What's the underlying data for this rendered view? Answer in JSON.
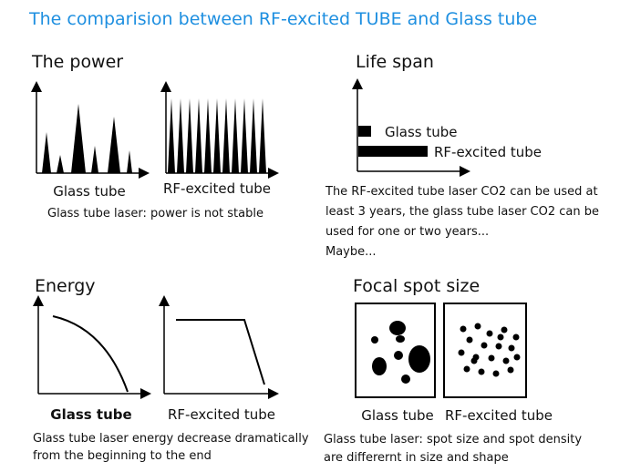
{
  "title": "The comparision between RF-excited TUBE and Glass tube",
  "panels": [
    {
      "heading": "The power",
      "labels": [
        "Glass tube",
        "RF-excited tube"
      ],
      "caption": [
        "Glass tube laser: power is not stable"
      ]
    },
    {
      "heading": "Life span",
      "labels": [
        "Glass tube",
        "RF-excited tube"
      ],
      "caption": [
        "The RF-excited tube laser CO2 can be used at",
        "least 3 years, the glass tube laser CO2 can be",
        "used for one or two years...",
        "Maybe..."
      ]
    },
    {
      "heading": "Energy",
      "labels": [
        "Glass tube",
        "RF-excited tube"
      ],
      "caption": [
        "Glass tube laser energy decrease dramatically",
        "from the beginning to the end"
      ]
    },
    {
      "heading": "Focal spot size",
      "labels": [
        "Glass tube",
        "RF-excited tube"
      ],
      "caption": [
        "Glass tube laser: spot size and spot density",
        "are differernt in size and shape"
      ]
    }
  ]
}
